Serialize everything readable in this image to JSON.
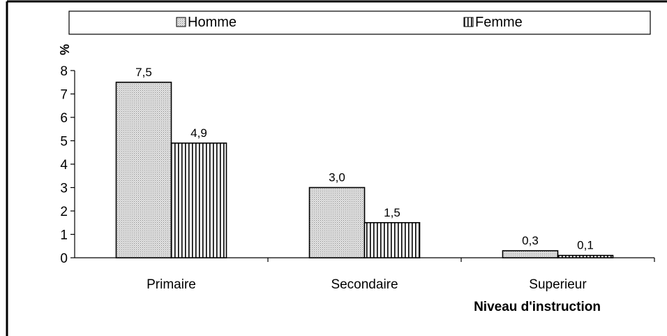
{
  "chart_data": {
    "type": "bar",
    "title": "",
    "xlabel": "Niveau d'instruction",
    "ylabel": "%",
    "ylim": [
      0,
      8
    ],
    "yticks": [
      0,
      1,
      2,
      3,
      4,
      5,
      6,
      7,
      8
    ],
    "categories": [
      "Primaire",
      "Secondaire",
      "Superieur"
    ],
    "series": [
      {
        "name": "Homme",
        "values": [
          7.5,
          3.0,
          0.3
        ],
        "labels": [
          "7,5",
          "3,0",
          "0,3"
        ],
        "pattern": "dotted-gray"
      },
      {
        "name": "Femme",
        "values": [
          4.9,
          1.5,
          0.1
        ],
        "labels": [
          "4,9",
          "1,5",
          "0,1"
        ],
        "pattern": "vertical-stripes"
      }
    ],
    "grid": false,
    "legend_position": "top"
  },
  "colors": {
    "bar_fill_homme": "#cfcfcf",
    "bar_stroke": "#000000",
    "stripe": "#000000"
  }
}
